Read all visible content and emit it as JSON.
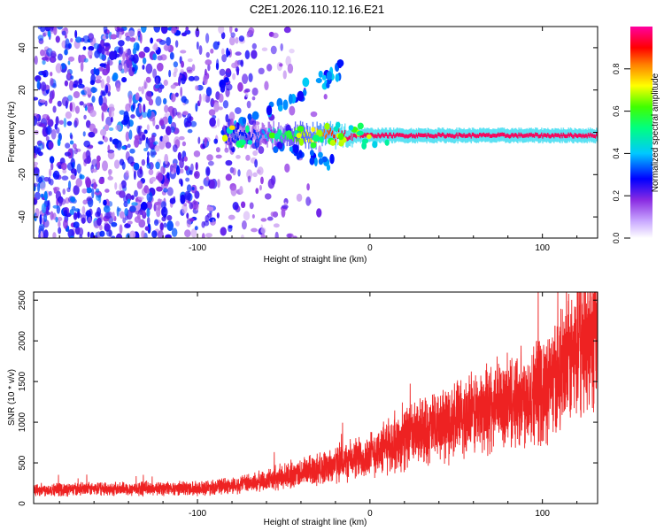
{
  "chart_data": [
    {
      "type": "heatmap",
      "title": "C2E1.2026.110.12.16.E21",
      "xlabel": "Height of straight line (km)",
      "ylabel": "Frequency (Hz)",
      "xlim": [
        -195,
        132
      ],
      "ylim": [
        -50,
        50
      ],
      "x_ticks": [
        -100,
        0,
        100
      ],
      "x_tick_labels": [
        "-100",
        "0",
        "100"
      ],
      "y_ticks": [
        -40,
        -20,
        0,
        20,
        40
      ],
      "y_tick_labels": [
        "-40",
        "-20",
        "0",
        "20",
        "40"
      ],
      "grid": false,
      "colorbar": {
        "label": "Normalized spectral amplitude",
        "range": [
          0,
          1
        ],
        "ticks": [
          0.0,
          0.2,
          0.4,
          0.6,
          0.8
        ],
        "tick_labels": [
          "0.0",
          "0.2",
          "0.4",
          "0.6",
          "0.8"
        ],
        "colors": [
          "#ffffff",
          "#8a2be2",
          "#0000ff",
          "#00c8ff",
          "#00ff80",
          "#40ff00",
          "#ffff00",
          "#ff8000",
          "#ff0000",
          "#ff00a0"
        ]
      },
      "ridge": {
        "x_start": -85,
        "x_end": 132,
        "frequency": -1.5,
        "amplitude_peak": 0.95
      },
      "noise_region": {
        "x_start": -195,
        "x_end": -45,
        "amplitude": 0.3
      }
    },
    {
      "type": "line",
      "xlabel": "Height of straight line (km)",
      "ylabel": "SNR (10 * v/v)",
      "xlim": [
        -195,
        132
      ],
      "ylim": [
        0,
        2600
      ],
      "x_ticks": [
        -100,
        0,
        100
      ],
      "x_tick_labels": [
        "-100",
        "0",
        "100"
      ],
      "y_ticks": [
        0,
        500,
        1000,
        1500,
        2000,
        2500
      ],
      "y_tick_labels": [
        "0",
        "500",
        "1000",
        "1500",
        "2000",
        "2500"
      ],
      "grid": false,
      "line_color": "#ee2222",
      "envelope": {
        "x": [
          -195,
          -150,
          -100,
          -80,
          -60,
          -40,
          -20,
          0,
          20,
          40,
          60,
          80,
          100,
          110,
          120,
          132
        ],
        "y": [
          170,
          180,
          190,
          220,
          280,
          380,
          480,
          600,
          800,
          950,
          1100,
          1250,
          1400,
          1580,
          1850,
          2250
        ]
      }
    }
  ]
}
